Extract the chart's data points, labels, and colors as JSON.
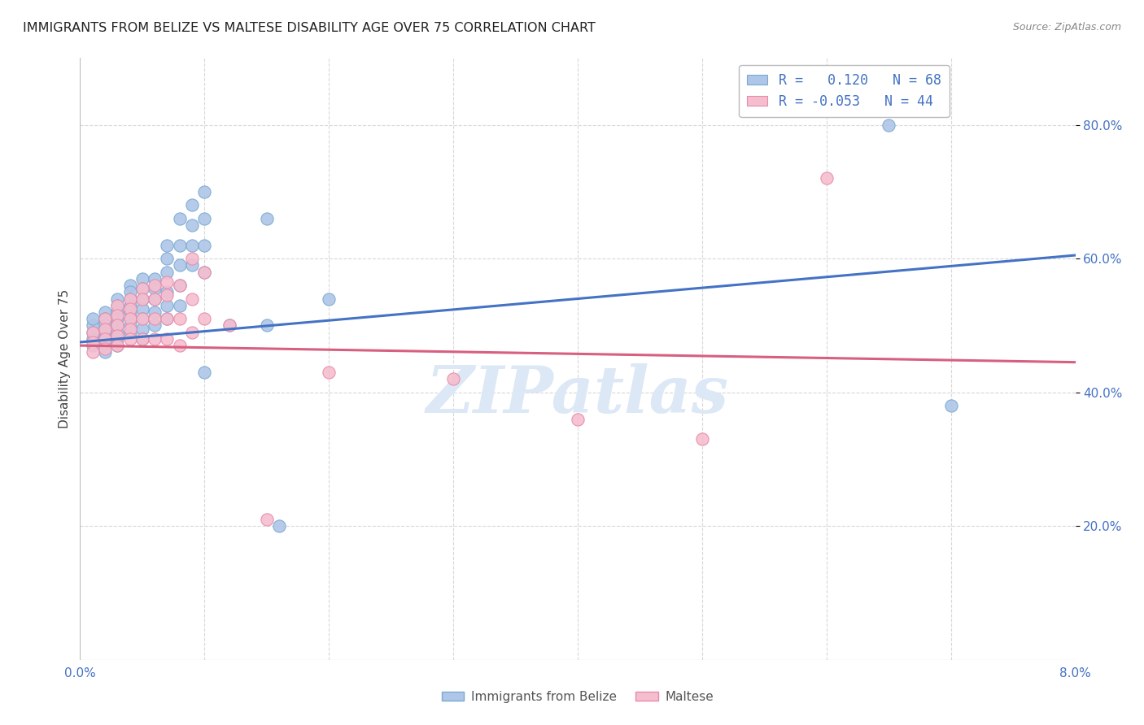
{
  "title": "IMMIGRANTS FROM BELIZE VS MALTESE DISABILITY AGE OVER 75 CORRELATION CHART",
  "source": "Source: ZipAtlas.com",
  "ylabel": "Disability Age Over 75",
  "xlim": [
    0.0,
    0.08
  ],
  "ylim": [
    0.0,
    0.9
  ],
  "yticks": [
    0.2,
    0.4,
    0.6,
    0.8
  ],
  "ytick_labels": [
    "20.0%",
    "40.0%",
    "60.0%",
    "80.0%"
  ],
  "xticks": [
    0.0,
    0.01,
    0.02,
    0.03,
    0.04,
    0.05,
    0.06,
    0.07,
    0.08
  ],
  "xtick_labels": [
    "0.0%",
    "",
    "",
    "",
    "",
    "",
    "",
    "",
    "8.0%"
  ],
  "belize_color": "#aec6e8",
  "belize_edge_color": "#7aaad0",
  "maltese_color": "#f5bece",
  "maltese_edge_color": "#e88aaa",
  "trend_blue": "#4472c4",
  "trend_pink": "#d75f7f",
  "watermark_color": "#dce8f5",
  "background_color": "#ffffff",
  "grid_color": "#d8d8d8",
  "title_color": "#222222",
  "axis_label_color": "#444444",
  "tick_color_blue": "#4472c4",
  "marker_size": 120,
  "belize_trend_x": [
    0.0,
    0.08
  ],
  "belize_trend_y": [
    0.475,
    0.605
  ],
  "maltese_trend_x": [
    0.0,
    0.08
  ],
  "maltese_trend_y": [
    0.47,
    0.445
  ],
  "belize_points": [
    [
      0.001,
      0.5
    ],
    [
      0.001,
      0.49
    ],
    [
      0.001,
      0.48
    ],
    [
      0.001,
      0.47
    ],
    [
      0.001,
      0.51
    ],
    [
      0.002,
      0.52
    ],
    [
      0.002,
      0.51
    ],
    [
      0.002,
      0.5
    ],
    [
      0.002,
      0.49
    ],
    [
      0.002,
      0.48
    ],
    [
      0.002,
      0.47
    ],
    [
      0.002,
      0.46
    ],
    [
      0.003,
      0.54
    ],
    [
      0.003,
      0.53
    ],
    [
      0.003,
      0.52
    ],
    [
      0.003,
      0.51
    ],
    [
      0.003,
      0.5
    ],
    [
      0.003,
      0.49
    ],
    [
      0.003,
      0.48
    ],
    [
      0.003,
      0.47
    ],
    [
      0.004,
      0.56
    ],
    [
      0.004,
      0.55
    ],
    [
      0.004,
      0.54
    ],
    [
      0.004,
      0.53
    ],
    [
      0.004,
      0.52
    ],
    [
      0.004,
      0.51
    ],
    [
      0.004,
      0.5
    ],
    [
      0.004,
      0.49
    ],
    [
      0.005,
      0.57
    ],
    [
      0.005,
      0.555
    ],
    [
      0.005,
      0.54
    ],
    [
      0.005,
      0.525
    ],
    [
      0.005,
      0.51
    ],
    [
      0.005,
      0.495
    ],
    [
      0.005,
      0.48
    ],
    [
      0.006,
      0.57
    ],
    [
      0.006,
      0.555
    ],
    [
      0.006,
      0.54
    ],
    [
      0.006,
      0.52
    ],
    [
      0.006,
      0.5
    ],
    [
      0.007,
      0.62
    ],
    [
      0.007,
      0.6
    ],
    [
      0.007,
      0.58
    ],
    [
      0.007,
      0.55
    ],
    [
      0.007,
      0.53
    ],
    [
      0.007,
      0.51
    ],
    [
      0.008,
      0.66
    ],
    [
      0.008,
      0.62
    ],
    [
      0.008,
      0.59
    ],
    [
      0.008,
      0.56
    ],
    [
      0.008,
      0.53
    ],
    [
      0.009,
      0.68
    ],
    [
      0.009,
      0.65
    ],
    [
      0.009,
      0.62
    ],
    [
      0.009,
      0.59
    ],
    [
      0.01,
      0.7
    ],
    [
      0.01,
      0.66
    ],
    [
      0.01,
      0.62
    ],
    [
      0.01,
      0.58
    ],
    [
      0.01,
      0.43
    ],
    [
      0.012,
      0.5
    ],
    [
      0.015,
      0.66
    ],
    [
      0.015,
      0.5
    ],
    [
      0.016,
      0.2
    ],
    [
      0.02,
      0.54
    ],
    [
      0.065,
      0.8
    ],
    [
      0.07,
      0.38
    ]
  ],
  "maltese_points": [
    [
      0.001,
      0.49
    ],
    [
      0.001,
      0.475
    ],
    [
      0.001,
      0.46
    ],
    [
      0.002,
      0.51
    ],
    [
      0.002,
      0.495
    ],
    [
      0.002,
      0.48
    ],
    [
      0.002,
      0.465
    ],
    [
      0.003,
      0.53
    ],
    [
      0.003,
      0.515
    ],
    [
      0.003,
      0.5
    ],
    [
      0.003,
      0.485
    ],
    [
      0.003,
      0.47
    ],
    [
      0.004,
      0.54
    ],
    [
      0.004,
      0.525
    ],
    [
      0.004,
      0.51
    ],
    [
      0.004,
      0.495
    ],
    [
      0.004,
      0.48
    ],
    [
      0.005,
      0.555
    ],
    [
      0.005,
      0.54
    ],
    [
      0.005,
      0.51
    ],
    [
      0.005,
      0.48
    ],
    [
      0.006,
      0.56
    ],
    [
      0.006,
      0.54
    ],
    [
      0.006,
      0.51
    ],
    [
      0.006,
      0.48
    ],
    [
      0.007,
      0.565
    ],
    [
      0.007,
      0.545
    ],
    [
      0.007,
      0.51
    ],
    [
      0.007,
      0.48
    ],
    [
      0.008,
      0.56
    ],
    [
      0.008,
      0.51
    ],
    [
      0.008,
      0.47
    ],
    [
      0.009,
      0.6
    ],
    [
      0.009,
      0.54
    ],
    [
      0.009,
      0.49
    ],
    [
      0.01,
      0.58
    ],
    [
      0.01,
      0.51
    ],
    [
      0.012,
      0.5
    ],
    [
      0.015,
      0.21
    ],
    [
      0.02,
      0.43
    ],
    [
      0.03,
      0.42
    ],
    [
      0.04,
      0.36
    ],
    [
      0.05,
      0.33
    ],
    [
      0.06,
      0.72
    ]
  ]
}
